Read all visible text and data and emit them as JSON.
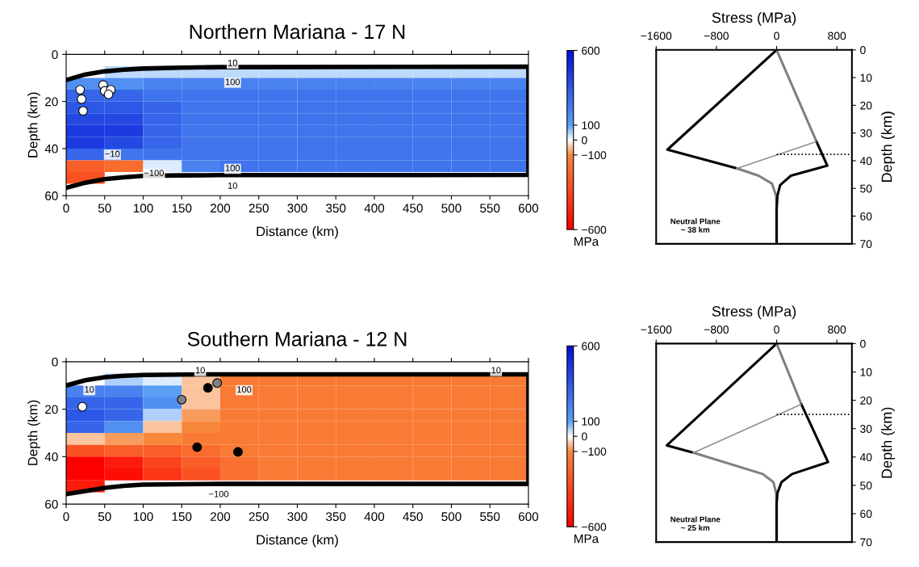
{
  "chart_data": [
    {
      "type": "heatmap",
      "title": "Northern Mariana - 17 N",
      "xlabel": "Distance (km)",
      "ylabel": "Depth (km)",
      "x": [
        25,
        75,
        125,
        175,
        225,
        275,
        325,
        375,
        425,
        475,
        525,
        575
      ],
      "y": [
        7.5,
        12.5,
        17.5,
        22.5,
        27.5,
        32.5,
        37.5,
        42.5,
        47.5,
        52.5
      ],
      "cells": [
        [
          null,
          40,
          40,
          40,
          40,
          40,
          40,
          40,
          40,
          40,
          40,
          40
        ],
        [
          150,
          150,
          200,
          200,
          200,
          200,
          200,
          200,
          200,
          200,
          200,
          200
        ],
        [
          300,
          300,
          250,
          250,
          250,
          250,
          250,
          250,
          250,
          250,
          250,
          250
        ],
        [
          350,
          350,
          300,
          250,
          250,
          250,
          250,
          250,
          250,
          250,
          250,
          250
        ],
        [
          400,
          400,
          300,
          250,
          250,
          250,
          250,
          250,
          250,
          250,
          250,
          250
        ],
        [
          450,
          450,
          300,
          250,
          250,
          250,
          250,
          250,
          250,
          250,
          250,
          250
        ],
        [
          450,
          400,
          300,
          250,
          250,
          250,
          250,
          250,
          250,
          250,
          250,
          250
        ],
        [
          300,
          250,
          250,
          250,
          250,
          250,
          250,
          250,
          250,
          250,
          250,
          250
        ],
        [
          -250,
          -200,
          20,
          200,
          250,
          250,
          250,
          250,
          250,
          250,
          250,
          250
        ],
        [
          -300,
          null,
          null,
          null,
          null,
          null,
          null,
          null,
          null,
          null,
          null,
          null
        ]
      ],
      "clim": [
        -600,
        600
      ],
      "cticks": [
        600,
        100,
        0,
        -100,
        -600
      ],
      "clabel": "MPa",
      "xlim": [
        0,
        600
      ],
      "xticks": [
        0,
        50,
        100,
        150,
        200,
        250,
        300,
        350,
        400,
        450,
        500,
        550,
        600
      ],
      "ylim": [
        60,
        0
      ],
      "yticks": [
        0,
        20,
        40,
        60
      ],
      "series": [
        {
          "type": "line",
          "color": "#000000",
          "x": [
            0,
            25,
            50,
            75,
            100,
            150,
            200,
            600,
            600,
            200,
            150,
            100,
            75,
            50,
            25,
            0
          ],
          "values": [
            10.9,
            8.5,
            7.2,
            6.5,
            6,
            5.6,
            5.4,
            5.2,
            51.2,
            51.3,
            51.4,
            51.6,
            52.2,
            53,
            54.5,
            56.7
          ]
        },
        {
          "type": "scatter",
          "color": "#ffffff",
          "x": [
            18,
            20,
            22,
            48,
            50,
            58,
            55
          ],
          "values": [
            15,
            19,
            24,
            13,
            15.5,
            15,
            17
          ]
        }
      ],
      "annotations": [
        "10",
        "100",
        "−10",
        "−100",
        "100",
        "10"
      ]
    },
    {
      "type": "line",
      "xlabel": "Stress (MPa)",
      "ylabel": "Depth (km)",
      "xlim": [
        -1600,
        1000
      ],
      "xticks": [
        -1600,
        -800,
        0,
        800
      ],
      "ylim": [
        70,
        0
      ],
      "yticks": [
        0,
        10,
        20,
        30,
        40,
        50,
        60,
        70
      ],
      "series": [
        {
          "color": "#000000",
          "x": [
            0,
            -1450,
            -526
          ],
          "values": [
            0,
            36,
            42.8
          ]
        },
        {
          "color": "#808080",
          "x": [
            -526,
            -240,
            -61,
            -7,
            0,
            0
          ],
          "values": [
            42.8,
            45.4,
            48.3,
            52.6,
            57.5,
            70
          ]
        },
        {
          "color": "#808080",
          "x": [
            0,
            530
          ],
          "values": [
            0,
            33.1
          ]
        },
        {
          "color": "#000000",
          "x": [
            530,
            673,
            190,
            47,
            11,
            0,
            0
          ],
          "values": [
            33.1,
            41.8,
            45.4,
            48.8,
            52.6,
            57.5,
            70
          ]
        },
        {
          "color": "#909090",
          "x": [
            -526,
            530
          ],
          "values": [
            42.8,
            33.1
          ]
        },
        {
          "color": "#000000",
          "x": [
            0,
            1000
          ],
          "values": [
            37.7,
            37.7
          ],
          "line_style": "dotted"
        }
      ],
      "annotations": [
        "Neutral Plane\n~ 38 km"
      ]
    },
    {
      "type": "heatmap",
      "title": "Southern Mariana - 12 N",
      "xlabel": "Distance (km)",
      "ylabel": "Depth (km)",
      "x": [
        25,
        75,
        125,
        175,
        225,
        275,
        325,
        375,
        425,
        475,
        525,
        575
      ],
      "y": [
        7.5,
        12.5,
        17.5,
        22.5,
        27.5,
        32.5,
        37.5,
        42.5,
        47.5,
        52.5
      ],
      "cells": [
        [
          null,
          50,
          20,
          -50,
          -150,
          -150,
          -150,
          -150,
          -150,
          -150,
          -150,
          -150
        ],
        [
          200,
          200,
          100,
          -50,
          -150,
          -150,
          -150,
          -150,
          -150,
          -150,
          -150,
          -150
        ],
        [
          300,
          300,
          150,
          -50,
          -150,
          -150,
          -150,
          -150,
          -150,
          -150,
          -150,
          -150
        ],
        [
          350,
          300,
          50,
          -80,
          -150,
          -150,
          -150,
          -150,
          -150,
          -150,
          -150,
          -150
        ],
        [
          300,
          150,
          -50,
          -100,
          -150,
          -150,
          -150,
          -150,
          -150,
          -150,
          -150,
          -150
        ],
        [
          -50,
          -80,
          -100,
          -150,
          -150,
          -150,
          -150,
          -150,
          -150,
          -150,
          -150,
          -150
        ],
        [
          -300,
          -250,
          -250,
          -200,
          -150,
          -150,
          -150,
          -150,
          -150,
          -150,
          -150,
          -150
        ],
        [
          -600,
          -500,
          -350,
          -250,
          -180,
          -150,
          -150,
          -150,
          -150,
          -150,
          -150,
          -150
        ],
        [
          -600,
          -550,
          -400,
          -300,
          -180,
          -150,
          -150,
          -150,
          -150,
          -150,
          -150,
          -150
        ],
        [
          -500,
          null,
          null,
          null,
          null,
          null,
          null,
          null,
          null,
          null,
          null,
          null
        ]
      ],
      "clim": [
        -600,
        600
      ],
      "cticks": [
        600,
        100,
        0,
        -100,
        -600
      ],
      "clabel": "MPa",
      "xlim": [
        0,
        600
      ],
      "xticks": [
        0,
        50,
        100,
        150,
        200,
        250,
        300,
        350,
        400,
        450,
        500,
        550,
        600
      ],
      "ylim": [
        60,
        0
      ],
      "yticks": [
        0,
        20,
        40,
        60
      ],
      "series": [
        {
          "type": "line",
          "color": "#000000",
          "x": [
            0,
            25,
            50,
            75,
            100,
            150,
            200,
            600,
            600,
            200,
            150,
            100,
            75,
            50,
            25,
            0
          ],
          "values": [
            10,
            7.8,
            6.5,
            5.9,
            5.6,
            5.4,
            5.3,
            5.3,
            51.5,
            51.5,
            51.6,
            51.8,
            52.3,
            53.2,
            54.5,
            55.8
          ]
        },
        {
          "type": "scatter",
          "color": "#ffffff",
          "x": [
            21
          ],
          "values": [
            19
          ]
        },
        {
          "type": "scatter",
          "color": "#808080",
          "x": [
            150,
            196
          ],
          "values": [
            16,
            9
          ]
        },
        {
          "type": "scatter",
          "color": "#000000",
          "x": [
            184,
            170,
            223
          ],
          "values": [
            11,
            36,
            38
          ]
        }
      ],
      "annotations": [
        "10",
        "10",
        "100",
        "10",
        "−100"
      ]
    },
    {
      "type": "line",
      "xlabel": "Stress (MPa)",
      "ylabel": "Depth (km)",
      "xlim": [
        -1600,
        1000
      ],
      "xticks": [
        -1600,
        -800,
        0,
        800
      ],
      "ylim": [
        70,
        0
      ],
      "yticks": [
        0,
        10,
        20,
        30,
        40,
        50,
        60,
        70
      ],
      "series": [
        {
          "color": "#000000",
          "x": [
            0,
            -1458,
            -1104
          ],
          "values": [
            0,
            35.9,
            38.5
          ]
        },
        {
          "color": "#808080",
          "x": [
            -1104,
            -184,
            -42,
            -7,
            0,
            0
          ],
          "values": [
            38.5,
            46,
            48.9,
            52.7,
            56.5,
            70
          ]
        },
        {
          "color": "#808080",
          "x": [
            0,
            329
          ],
          "values": [
            0,
            21.4
          ]
        },
        {
          "color": "#000000",
          "x": [
            329,
            683,
            205,
            64,
            11,
            0,
            0
          ],
          "values": [
            21.4,
            41.8,
            46,
            48.9,
            52.7,
            56.5,
            70
          ]
        },
        {
          "color": "#909090",
          "x": [
            -1104,
            329
          ],
          "values": [
            38.5,
            21.4
          ]
        },
        {
          "color": "#000000",
          "x": [
            0,
            1000
          ],
          "values": [
            25,
            25
          ],
          "line_style": "dotted"
        }
      ],
      "annotations": [
        "Neutral Plane\n~ 25 km"
      ]
    }
  ]
}
